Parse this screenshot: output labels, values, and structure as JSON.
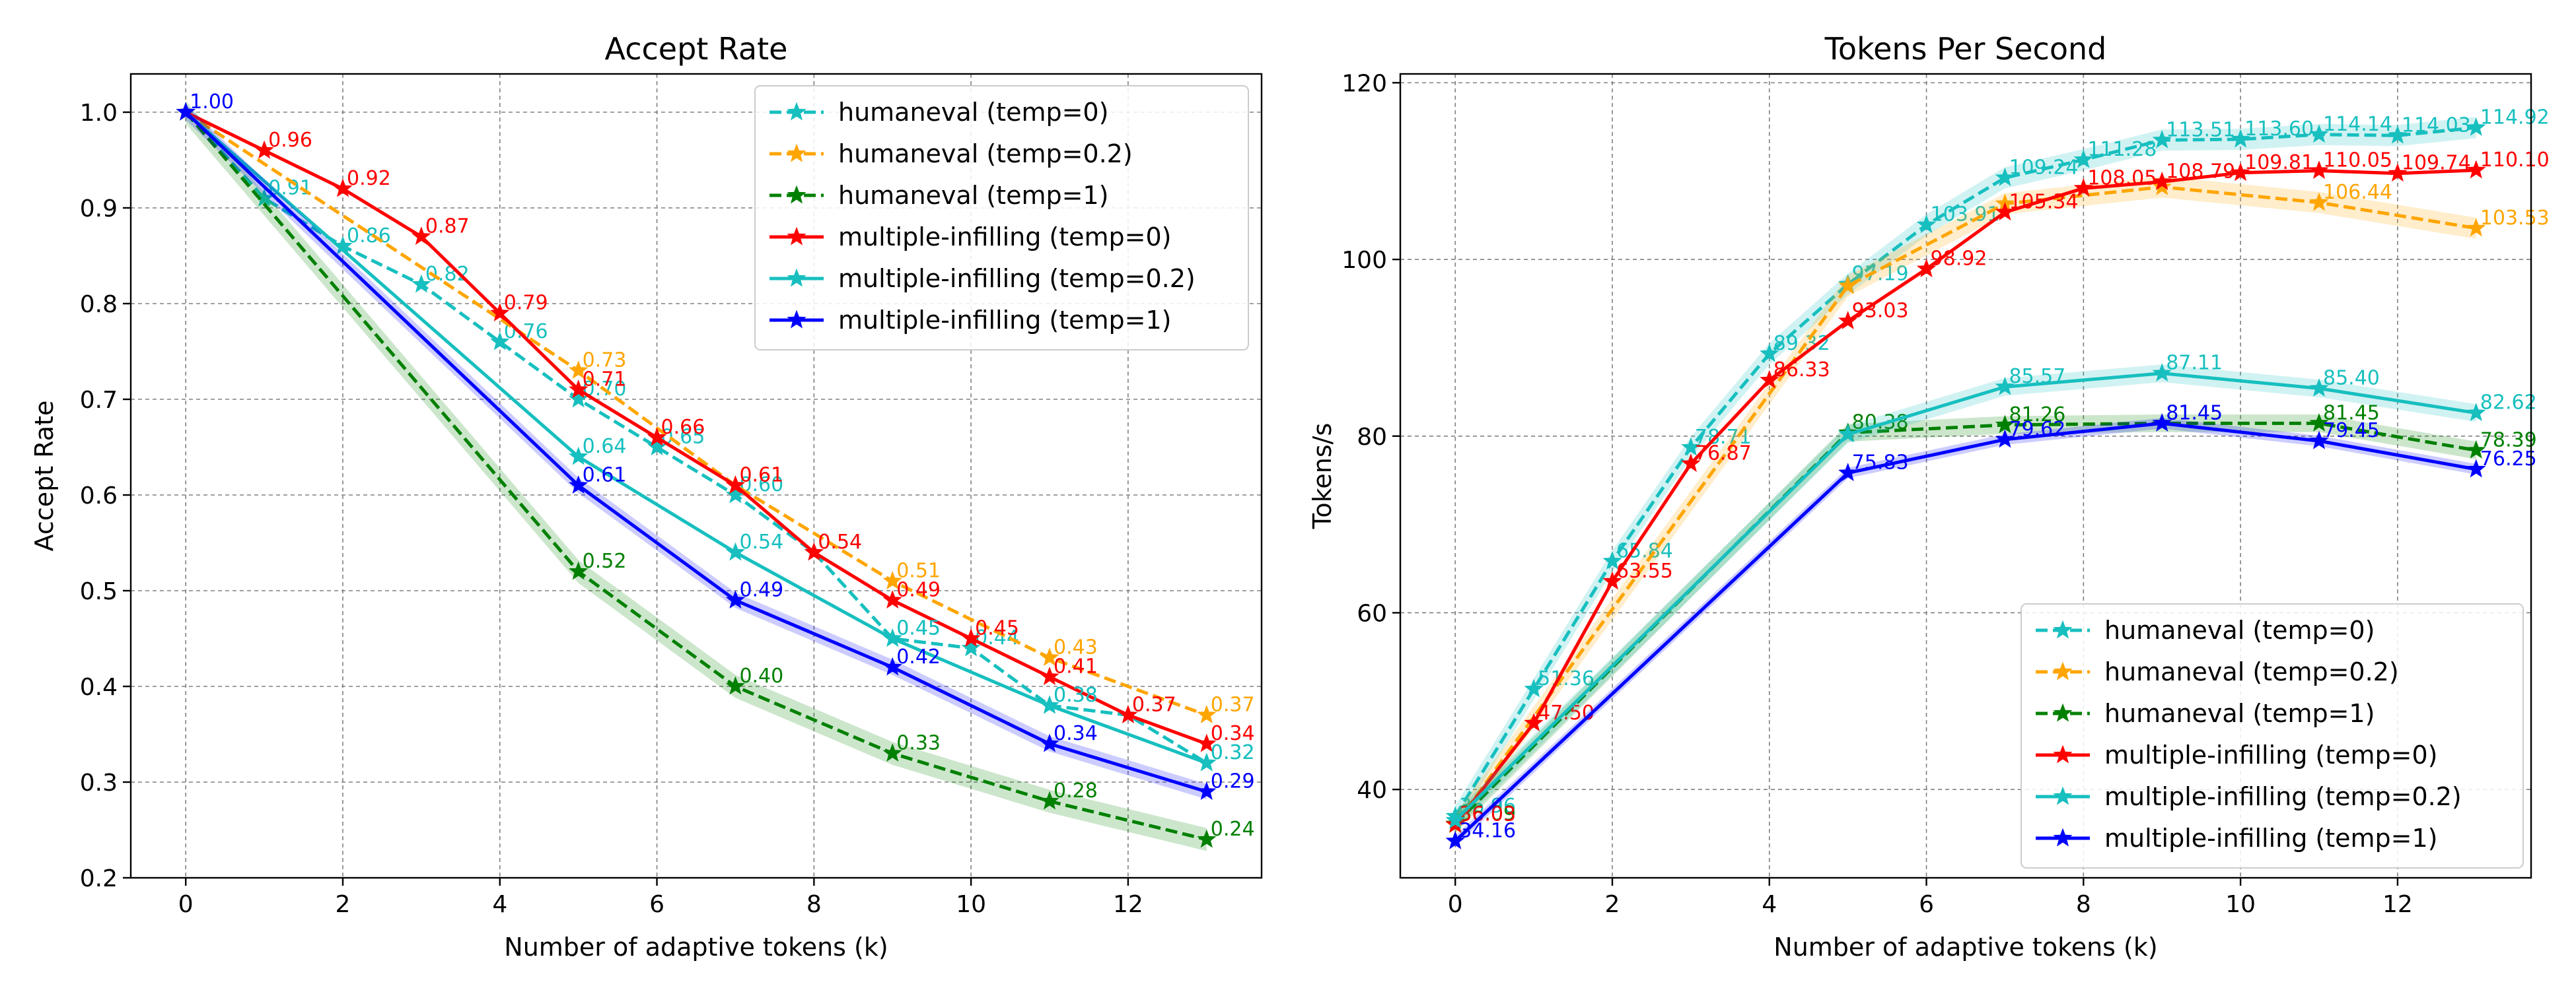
{
  "chart_data": [
    {
      "type": "line",
      "title": "Accept Rate",
      "xlabel": "Number of adaptive tokens (k)",
      "ylabel": "Accept Rate",
      "xlim": [
        -0.7,
        13.7
      ],
      "ylim": [
        0.2,
        1.04
      ],
      "xticks": [
        0,
        2,
        4,
        6,
        8,
        10,
        12
      ],
      "yticks": [
        0.2,
        0.3,
        0.4,
        0.5,
        0.6,
        0.7,
        0.8,
        0.9,
        1.0
      ],
      "ytick_labels": [
        "0.2",
        "0.3",
        "0.4",
        "0.5",
        "0.6",
        "0.7",
        "0.8",
        "0.9",
        "1.0"
      ],
      "grid": true,
      "legend_position": "top-right",
      "series": [
        {
          "name": "humaneval (temp=0)",
          "color": "#17bfbf",
          "dash": true,
          "band": 0,
          "x": [
            0,
            1,
            2,
            3,
            4,
            5,
            6,
            7,
            8,
            9,
            10,
            11,
            12,
            13
          ],
          "y": [
            1.0,
            0.91,
            0.86,
            0.82,
            0.76,
            0.7,
            0.65,
            0.6,
            0.54,
            0.45,
            0.44,
            0.38,
            0.37,
            0.32
          ],
          "labels": [
            "",
            "0.91",
            "0.86",
            "0.82",
            "0.76",
            "0.70",
            "0.65",
            "0.60",
            "0.54",
            "0.45",
            "0.44",
            "0.38",
            "0.37",
            "0.32"
          ]
        },
        {
          "name": "humaneval (temp=0.2)",
          "color": "#ffa500",
          "dash": true,
          "band": 0,
          "x": [
            0,
            5,
            7,
            9,
            11,
            13
          ],
          "y": [
            1.0,
            0.73,
            0.61,
            0.51,
            0.43,
            0.37
          ],
          "labels": [
            "",
            "0.73",
            "0.61",
            "0.51",
            "0.43",
            "0.37"
          ]
        },
        {
          "name": "humaneval (temp=1)",
          "color": "#008000",
          "dash": true,
          "band": 0.012,
          "x": [
            0,
            5,
            7,
            9,
            11,
            13
          ],
          "y": [
            1.0,
            0.52,
            0.4,
            0.33,
            0.28,
            0.24
          ],
          "labels": [
            "",
            "0.52",
            "0.40",
            "0.33",
            "0.28",
            "0.24"
          ]
        },
        {
          "name": "multiple-infilling (temp=0)",
          "color": "#ff0000",
          "dash": false,
          "band": 0,
          "x": [
            0,
            1,
            2,
            3,
            4,
            5,
            6,
            7,
            8,
            9,
            10,
            11,
            12,
            13
          ],
          "y": [
            1.0,
            0.96,
            0.92,
            0.87,
            0.79,
            0.71,
            0.66,
            0.61,
            0.54,
            0.49,
            0.45,
            0.41,
            0.37,
            0.34
          ],
          "labels": [
            "",
            "0.96",
            "0.92",
            "0.87",
            "0.79",
            "0.71",
            "0.66",
            "0.61",
            "0.54",
            "0.49",
            "0.45",
            "0.41",
            "0.37",
            "0.34"
          ]
        },
        {
          "name": "multiple-infilling (temp=0.2)",
          "color": "#17bfbf",
          "dash": false,
          "band": 0,
          "x": [
            0,
            5,
            7,
            9,
            11,
            13
          ],
          "y": [
            1.0,
            0.64,
            0.54,
            0.45,
            0.38,
            0.32
          ],
          "labels": [
            "",
            "0.64",
            "0.54",
            "0.45",
            "0.38",
            "0.32"
          ]
        },
        {
          "name": "multiple-infilling (temp=1)",
          "color": "#0000ff",
          "dash": false,
          "band": 0.008,
          "x": [
            0,
            5,
            7,
            9,
            11,
            13
          ],
          "y": [
            1.0,
            0.61,
            0.49,
            0.42,
            0.34,
            0.29
          ],
          "labels": [
            "1.00",
            "0.61",
            "0.49",
            "0.42",
            "0.34",
            "0.29"
          ]
        }
      ]
    },
    {
      "type": "line",
      "title": "Tokens Per Second",
      "xlabel": "Number of adaptive tokens (k)",
      "ylabel": "Tokens/s",
      "xlim": [
        -0.7,
        13.7
      ],
      "ylim": [
        30,
        121
      ],
      "xticks": [
        0,
        2,
        4,
        6,
        8,
        10,
        12
      ],
      "yticks": [
        40,
        60,
        80,
        100,
        120
      ],
      "ytick_labels": [
        "40",
        "60",
        "80",
        "100",
        "120"
      ],
      "grid": true,
      "legend_position": "bottom-right",
      "series": [
        {
          "name": "humaneval (temp=0)",
          "color": "#17bfbf",
          "dash": true,
          "band": 1.2,
          "x": [
            0,
            1,
            2,
            3,
            4,
            5,
            6,
            7,
            8,
            9,
            10,
            11,
            12,
            13
          ],
          "y": [
            36.96,
            51.36,
            65.84,
            78.71,
            89.32,
            97.19,
            103.91,
            109.24,
            111.28,
            113.51,
            113.6,
            114.14,
            114.03,
            114.92
          ],
          "labels": [
            "36.96",
            "51.36",
            "65.84",
            "78.71",
            "89.32",
            "97.19",
            "103.91",
            "109.24",
            "111.28",
            "113.51",
            "113.60",
            "114.14",
            "114.03",
            "114.92"
          ]
        },
        {
          "name": "humaneval (temp=0.2)",
          "color": "#ffa500",
          "dash": true,
          "band": 1.2,
          "x": [
            0,
            5,
            7,
            9,
            11,
            13
          ],
          "y": [
            36.0,
            97.0,
            106.3,
            108.2,
            106.44,
            103.53
          ],
          "labels": [
            "",
            "",
            "",
            "",
            "106.44",
            "103.53"
          ]
        },
        {
          "name": "humaneval (temp=1)",
          "color": "#008000",
          "dash": true,
          "band": 1.0,
          "x": [
            0,
            5,
            7,
            9,
            11,
            13
          ],
          "y": [
            36.09,
            80.38,
            81.26,
            81.45,
            81.45,
            78.39
          ],
          "labels": [
            "36.09",
            "80.38",
            "81.26",
            "81.45",
            "81.45",
            "78.39"
          ]
        },
        {
          "name": "multiple-infilling (temp=0)",
          "color": "#ff0000",
          "dash": false,
          "band": 0,
          "x": [
            0,
            1,
            2,
            3,
            4,
            5,
            6,
            7,
            8,
            9,
            10,
            11,
            12,
            13
          ],
          "y": [
            36.03,
            47.5,
            63.55,
            76.87,
            86.33,
            93.03,
            98.92,
            105.34,
            108.05,
            108.79,
            109.81,
            110.05,
            109.74,
            110.1
          ],
          "labels": [
            "36.03",
            "47.50",
            "63.55",
            "76.87",
            "86.33",
            "93.03",
            "98.92",
            "105.34",
            "108.05",
            "108.79",
            "109.81",
            "110.05",
            "109.74",
            "110.10"
          ]
        },
        {
          "name": "multiple-infilling (temp=0.2)",
          "color": "#17bfbf",
          "dash": false,
          "band": 1.0,
          "x": [
            0,
            5,
            7,
            9,
            11,
            13
          ],
          "y": [
            36.5,
            80.2,
            85.57,
            87.11,
            85.4,
            82.62
          ],
          "labels": [
            "",
            "",
            "85.57",
            "87.11",
            "85.40",
            "82.62"
          ]
        },
        {
          "name": "multiple-infilling (temp=1)",
          "color": "#0000ff",
          "dash": false,
          "band": 0.6,
          "x": [
            0,
            5,
            7,
            9,
            11,
            13
          ],
          "y": [
            34.16,
            75.83,
            79.62,
            81.45,
            79.45,
            76.25
          ],
          "labels": [
            "34.16",
            "75.83",
            "79.62",
            "81.45",
            "79.45",
            "76.25"
          ]
        }
      ]
    }
  ]
}
